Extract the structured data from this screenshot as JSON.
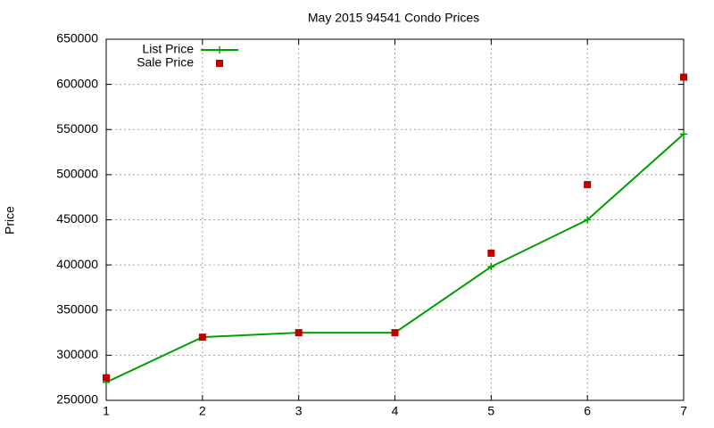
{
  "chart_data": {
    "type": "line",
    "title": "May 2015 94541 Condo Prices",
    "y_label": "Price",
    "x": [
      1,
      2,
      3,
      4,
      5,
      6,
      7
    ],
    "series": [
      {
        "name": "List Price",
        "color": "#00a000",
        "line": true,
        "marker": "plus",
        "values": [
          270000,
          320000,
          325000,
          325000,
          398000,
          450000,
          545000
        ]
      },
      {
        "name": "Sale Price",
        "color": "#c00000",
        "line": false,
        "marker": "square",
        "values": [
          275000,
          320000,
          325000,
          325000,
          413000,
          489000,
          608000
        ]
      }
    ],
    "xlim": [
      1,
      7
    ],
    "xticks": [
      1,
      2,
      3,
      4,
      5,
      6,
      7
    ],
    "ylim": [
      250000,
      650000
    ],
    "yticks": [
      250000,
      300000,
      350000,
      400000,
      450000,
      500000,
      550000,
      600000,
      650000
    ],
    "grid": true,
    "legend": "top-left"
  }
}
